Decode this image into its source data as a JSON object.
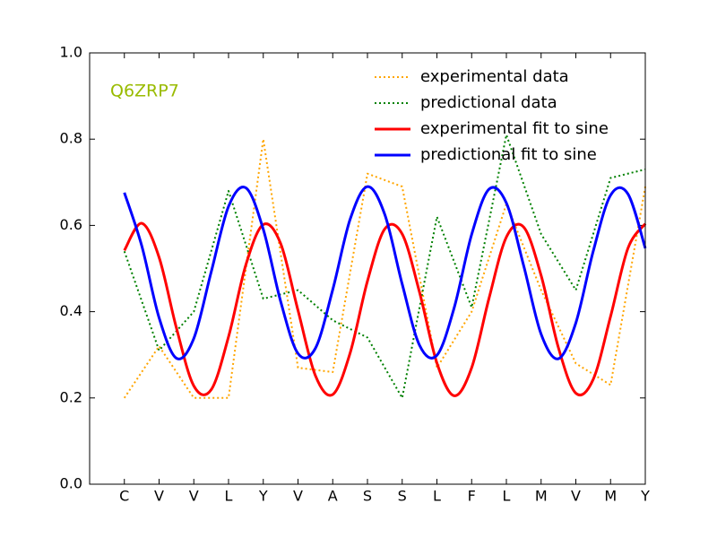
{
  "chart_data": {
    "type": "line",
    "annotation": "Q6ZRP7",
    "annotation_color": "#99bb00",
    "categories": [
      "C",
      "V",
      "V",
      "L",
      "Y",
      "V",
      "A",
      "S",
      "S",
      "L",
      "F",
      "L",
      "M",
      "V",
      "M",
      "Y"
    ],
    "xlim": [
      -1,
      15
    ],
    "ylim": [
      0,
      1
    ],
    "yticks": [
      {
        "value": 0,
        "label": "0.0"
      },
      {
        "value": 0.2,
        "label": "0.2"
      },
      {
        "value": 0.4,
        "label": "0.4"
      },
      {
        "value": 0.6,
        "label": "0.6"
      },
      {
        "value": 0.8,
        "label": "0.8"
      },
      {
        "value": 1,
        "label": "1.0"
      }
    ],
    "legend": "upper-right",
    "series": [
      {
        "name": "experimental data",
        "color": "#ffa500",
        "style": "dotted",
        "values": [
          0.2,
          0.32,
          0.2,
          0.2,
          0.8,
          0.27,
          0.26,
          0.72,
          0.69,
          0.27,
          0.4,
          0.65,
          0.45,
          0.28,
          0.23,
          0.69
        ]
      },
      {
        "name": "predictional data",
        "color": "#008000",
        "style": "dotted",
        "values": [
          0.54,
          0.31,
          0.4,
          0.68,
          0.43,
          0.45,
          0.38,
          0.34,
          0.2,
          0.62,
          0.41,
          0.81,
          0.58,
          0.45,
          0.71,
          0.73
        ]
      },
      {
        "name": "experimental fit to sine",
        "color": "#ff0000",
        "style": "solid",
        "x": [
          0,
          0.5,
          1,
          1.5,
          2,
          2.5,
          3,
          3.5,
          4,
          4.5,
          5,
          5.5,
          6,
          6.5,
          7,
          7.5,
          8,
          8.5,
          9,
          9.5,
          10,
          10.5,
          11,
          11.5,
          12,
          12.5,
          13,
          13.5,
          14,
          14.5,
          15
        ],
        "values": [
          0.542,
          0.605,
          0.526,
          0.362,
          0.228,
          0.219,
          0.342,
          0.509,
          0.602,
          0.558,
          0.403,
          0.252,
          0.208,
          0.304,
          0.471,
          0.592,
          0.58,
          0.445,
          0.281,
          0.205,
          0.27,
          0.431,
          0.573,
          0.596,
          0.484,
          0.316,
          0.211,
          0.243,
          0.389,
          0.547,
          0.604
        ]
      },
      {
        "name": "predictional fit to sine",
        "color": "#0000ff",
        "style": "solid",
        "x": [
          0,
          0.5,
          1,
          1.5,
          2,
          2.5,
          3,
          3.5,
          4,
          4.5,
          5,
          5.5,
          6,
          6.5,
          7,
          7.5,
          8,
          8.5,
          9,
          9.5,
          10,
          10.5,
          11,
          11.5,
          12,
          12.5,
          13,
          13.5,
          14,
          14.5,
          15
        ],
        "values": [
          0.676,
          0.553,
          0.386,
          0.292,
          0.338,
          0.492,
          0.644,
          0.687,
          0.591,
          0.424,
          0.303,
          0.315,
          0.451,
          0.614,
          0.69,
          0.625,
          0.464,
          0.322,
          0.299,
          0.41,
          0.579,
          0.684,
          0.652,
          0.506,
          0.348,
          0.291,
          0.374,
          0.54,
          0.67,
          0.673,
          0.547
        ]
      }
    ]
  }
}
